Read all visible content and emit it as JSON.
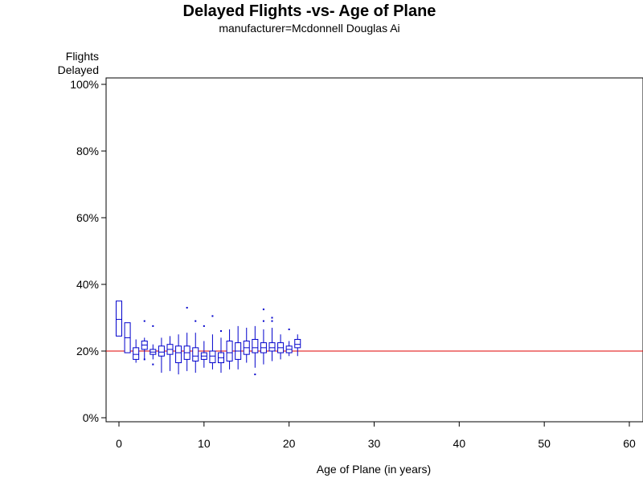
{
  "chart_data": {
    "type": "box",
    "title": "Delayed Flights -vs- Age of Plane",
    "subtitle": "manufacturer=Mcdonnell Douglas Ai",
    "xlabel": "Age of Plane (in years)",
    "ylabel_lines": [
      "Flights",
      "Delayed"
    ],
    "xlim": [
      -1.5,
      61.5
    ],
    "ylim": [
      0,
      100
    ],
    "xticks": [
      0,
      10,
      20,
      30,
      40,
      50,
      60
    ],
    "yticks": [
      0,
      20,
      40,
      60,
      80,
      100
    ],
    "ytick_labels": [
      "0%",
      "20%",
      "40%",
      "60%",
      "80%",
      "100%"
    ],
    "reference_line": {
      "y": 20,
      "color": "#e00000"
    },
    "box_color": "#0000cc",
    "grid": false,
    "boxes": [
      {
        "age": 0,
        "q1": 24.5,
        "median": 29.5,
        "q3": 35.0,
        "min": 24.5,
        "max": 35.0,
        "outliers": []
      },
      {
        "age": 1,
        "q1": 19.5,
        "median": 24.0,
        "q3": 28.5,
        "min": 19.5,
        "max": 28.5,
        "outliers": []
      },
      {
        "age": 2,
        "q1": 17.5,
        "median": 19.0,
        "q3": 21.0,
        "min": 16.5,
        "max": 23.5,
        "outliers": []
      },
      {
        "age": 3,
        "q1": 20.5,
        "median": 21.8,
        "q3": 23.0,
        "min": 17.5,
        "max": 24.0,
        "outliers": [
          17.5,
          29.0
        ]
      },
      {
        "age": 4,
        "q1": 19.0,
        "median": 19.7,
        "q3": 20.5,
        "min": 17.5,
        "max": 22.0,
        "outliers": [
          16.0,
          27.5
        ]
      },
      {
        "age": 5,
        "q1": 18.5,
        "median": 19.7,
        "q3": 21.5,
        "min": 13.5,
        "max": 24.0,
        "outliers": []
      },
      {
        "age": 6,
        "q1": 19.0,
        "median": 20.5,
        "q3": 22.0,
        "min": 14.0,
        "max": 24.5,
        "outliers": []
      },
      {
        "age": 7,
        "q1": 16.5,
        "median": 19.5,
        "q3": 21.5,
        "min": 13.0,
        "max": 25.0,
        "outliers": []
      },
      {
        "age": 8,
        "q1": 17.5,
        "median": 19.5,
        "q3": 21.5,
        "min": 14.0,
        "max": 25.5,
        "outliers": [
          33.0
        ]
      },
      {
        "age": 9,
        "q1": 17.0,
        "median": 18.5,
        "q3": 21.0,
        "min": 13.5,
        "max": 25.5,
        "outliers": [
          29.0
        ]
      },
      {
        "age": 10,
        "q1": 17.5,
        "median": 18.5,
        "q3": 19.5,
        "min": 15.0,
        "max": 23.0,
        "outliers": [
          27.5
        ]
      },
      {
        "age": 11,
        "q1": 16.5,
        "median": 18.5,
        "q3": 20.0,
        "min": 14.5,
        "max": 25.0,
        "outliers": [
          30.5
        ]
      },
      {
        "age": 12,
        "q1": 16.5,
        "median": 18.0,
        "q3": 19.5,
        "min": 13.5,
        "max": 24.0,
        "outliers": [
          26.0
        ]
      },
      {
        "age": 13,
        "q1": 17.0,
        "median": 19.5,
        "q3": 23.0,
        "min": 14.5,
        "max": 26.5,
        "outliers": []
      },
      {
        "age": 14,
        "q1": 17.5,
        "median": 20.0,
        "q3": 22.5,
        "min": 14.5,
        "max": 27.5,
        "outliers": []
      },
      {
        "age": 15,
        "q1": 19.0,
        "median": 21.0,
        "q3": 23.0,
        "min": 16.5,
        "max": 27.0,
        "outliers": []
      },
      {
        "age": 16,
        "q1": 19.5,
        "median": 21.0,
        "q3": 23.5,
        "min": 15.0,
        "max": 27.5,
        "outliers": [
          13.0
        ]
      },
      {
        "age": 17,
        "q1": 19.5,
        "median": 21.0,
        "q3": 22.5,
        "min": 16.0,
        "max": 26.5,
        "outliers": [
          29.0,
          32.5
        ]
      },
      {
        "age": 18,
        "q1": 20.0,
        "median": 21.0,
        "q3": 22.5,
        "min": 17.0,
        "max": 27.0,
        "outliers": [
          29.0,
          30.0
        ]
      },
      {
        "age": 19,
        "q1": 19.5,
        "median": 21.0,
        "q3": 22.5,
        "min": 17.5,
        "max": 25.0,
        "outliers": []
      },
      {
        "age": 20,
        "q1": 19.5,
        "median": 20.5,
        "q3": 21.5,
        "min": 18.5,
        "max": 23.0,
        "outliers": [
          26.5
        ]
      },
      {
        "age": 21,
        "q1": 21.0,
        "median": 22.0,
        "q3": 23.5,
        "min": 18.5,
        "max": 25.0,
        "outliers": []
      }
    ]
  }
}
